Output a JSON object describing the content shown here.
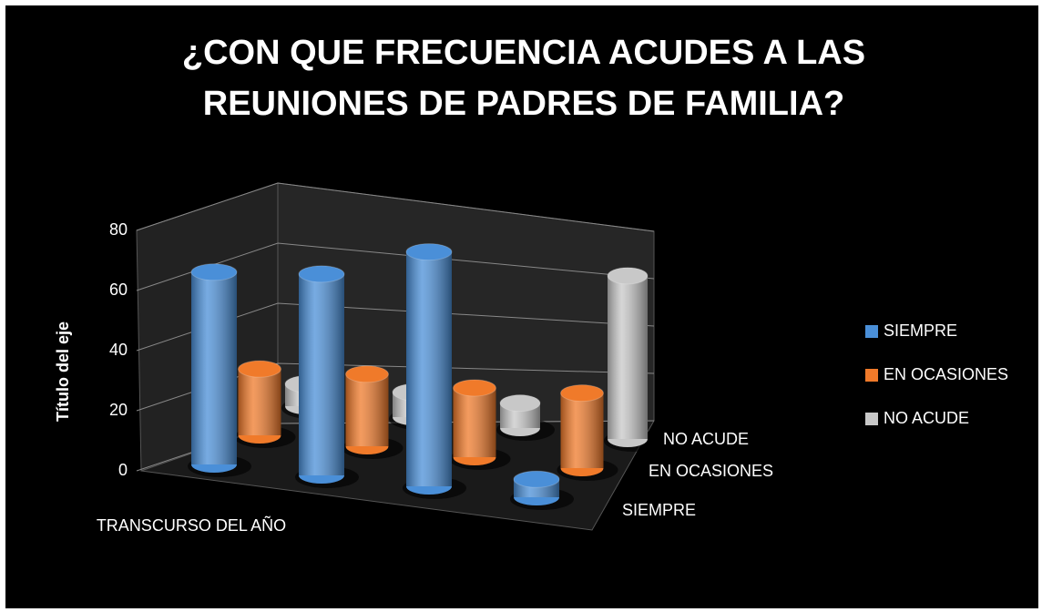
{
  "chart_data": {
    "type": "bar3d",
    "title": "¿CON QUE FRECUENCIA ACUDES A LAS REUNIONES DE PADRES DE FAMILIA?",
    "y_label": "Título del eje",
    "categories": [
      "TRANSCURSO DEL AÑO",
      null,
      null,
      null
    ],
    "series": [
      {
        "name": "SIEMPRE",
        "color": "#4a8fd8",
        "values": [
          64,
          67,
          78,
          6
        ]
      },
      {
        "name": "EN OCASIONES",
        "color": "#f07a2a",
        "values": [
          23,
          25,
          24,
          26
        ]
      },
      {
        "name": "NO ACUDE",
        "color": "#c8c8c8",
        "values": [
          8,
          9,
          9,
          59
        ]
      }
    ],
    "ylim": [
      0,
      80
    ],
    "yticks": [
      0,
      20,
      40,
      60,
      80
    ],
    "grid": true,
    "legend": "right"
  }
}
